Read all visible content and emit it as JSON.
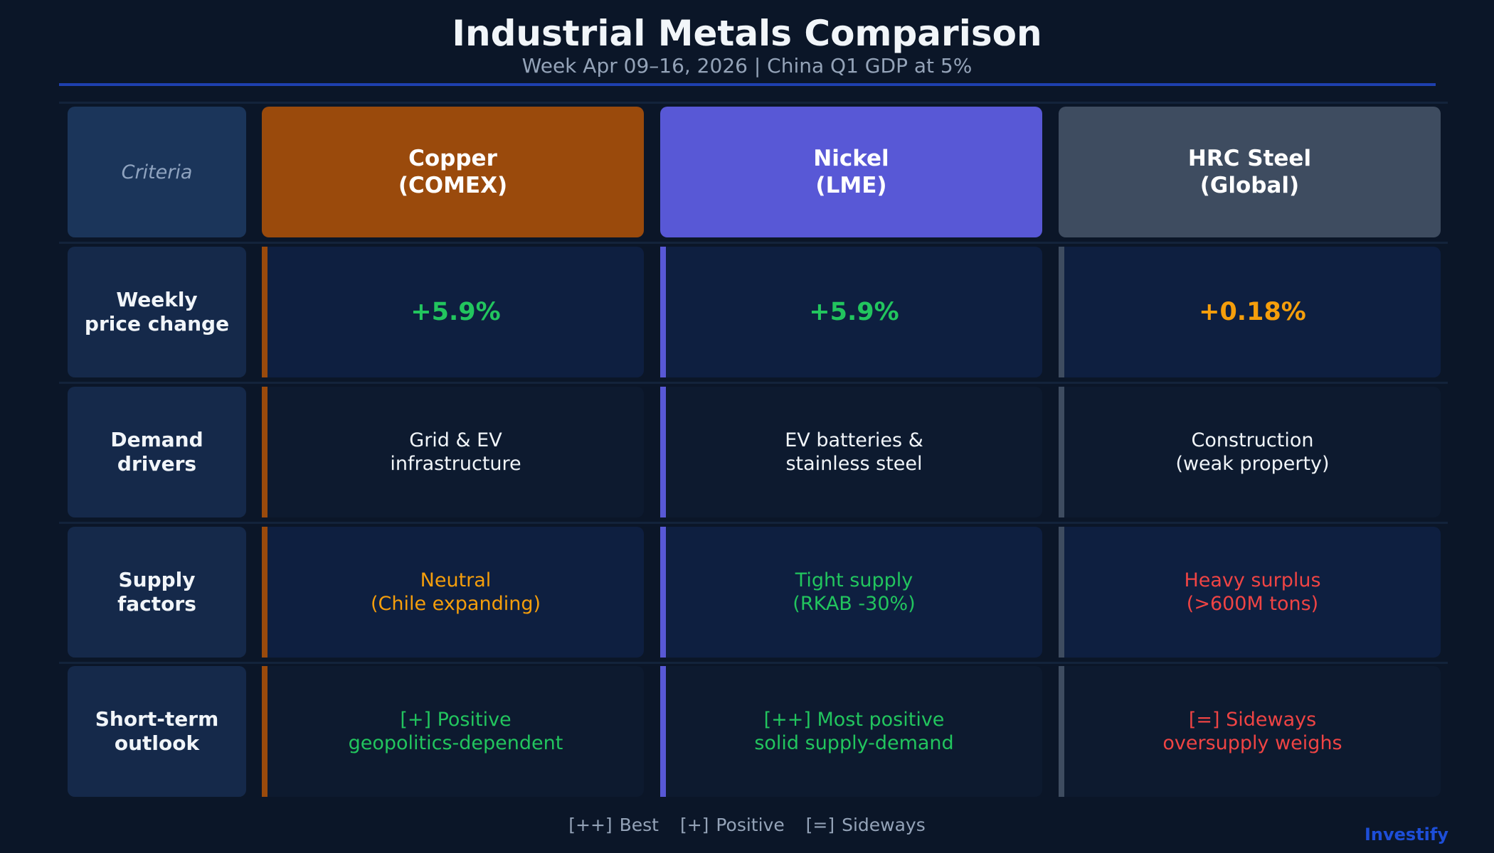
{
  "header": {
    "title": "Industrial Metals Comparison",
    "subtitle": "Week Apr 09–16, 2026 | China Q1 GDP at 5%"
  },
  "columns": [
    {
      "label": "Criteria"
    },
    {
      "label": "Copper\n(COMEX)",
      "color": "#9a4a0c"
    },
    {
      "label": "Nickel\n(LME)",
      "color": "#5858d6"
    },
    {
      "label": "HRC Steel\n(Global)",
      "color": "#3e4c60"
    }
  ],
  "rows": [
    {
      "criteria": "Weekly\nprice change",
      "cells": [
        {
          "text": "+5.9%",
          "color": "#22c55e"
        },
        {
          "text": "+5.9%",
          "color": "#22c55e"
        },
        {
          "text": "+0.18%",
          "color": "#f59e0b"
        }
      ]
    },
    {
      "criteria": "Demand\ndrivers",
      "cells": [
        {
          "text": "Grid & EV\ninfrastructure",
          "color": "#f1f5f9"
        },
        {
          "text": "EV batteries &\nstainless steel",
          "color": "#f1f5f9"
        },
        {
          "text": "Construction\n(weak property)",
          "color": "#f1f5f9"
        }
      ]
    },
    {
      "criteria": "Supply\nfactors",
      "cells": [
        {
          "text": "Neutral\n(Chile expanding)",
          "color": "#f59e0b"
        },
        {
          "text": "Tight supply\n(RKAB -30%)",
          "color": "#22c55e"
        },
        {
          "text": "Heavy surplus\n(>600M tons)",
          "color": "#ef4444"
        }
      ]
    },
    {
      "criteria": "Short-term\noutlook",
      "cells": [
        {
          "text": "[+] Positive\ngeopolitics-dependent",
          "color": "#22c55e"
        },
        {
          "text": "[++] Most positive\nsolid supply-demand",
          "color": "#22c55e"
        },
        {
          "text": "[=] Sideways\noversupply weighs",
          "color": "#ef4444"
        }
      ]
    }
  ],
  "legend": [
    "[++] Best",
    "[+] Positive",
    "[=] Sideways"
  ],
  "brand": "Investify"
}
